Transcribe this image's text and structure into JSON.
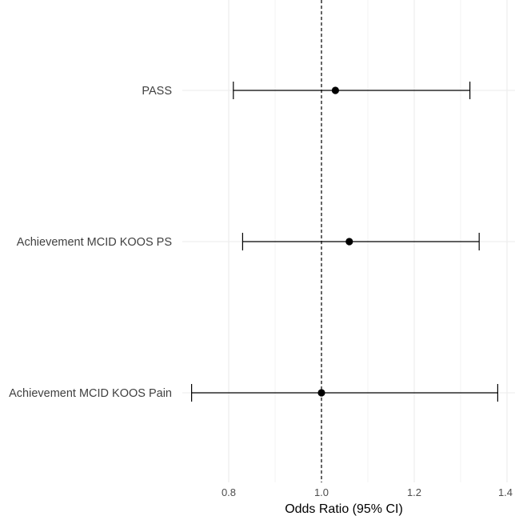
{
  "chart_data": {
    "type": "forest",
    "title": "",
    "xlabel": "Odds Ratio (95% CI)",
    "ylabel": "",
    "xlim": [
      0.7,
      1.4
    ],
    "x_ticks": [
      0.8,
      1.0,
      1.2,
      1.4
    ],
    "x_tick_labels": [
      "0.8",
      "1.0",
      "1.2",
      "1.4"
    ],
    "reference_line": 1.0,
    "grid": true,
    "legend": "none",
    "rows": [
      {
        "label": "PASS",
        "estimate": 1.03,
        "lower": 0.81,
        "upper": 1.32
      },
      {
        "label": "Achievement MCID KOOS PS",
        "estimate": 1.06,
        "lower": 0.83,
        "upper": 1.34
      },
      {
        "label": "Achievement MCID KOOS Pain",
        "estimate": 1.0,
        "lower": 0.72,
        "upper": 1.38
      }
    ],
    "colors": {
      "grid": "#ebebeb",
      "marks": "#000000",
      "reference": "#000000"
    }
  }
}
